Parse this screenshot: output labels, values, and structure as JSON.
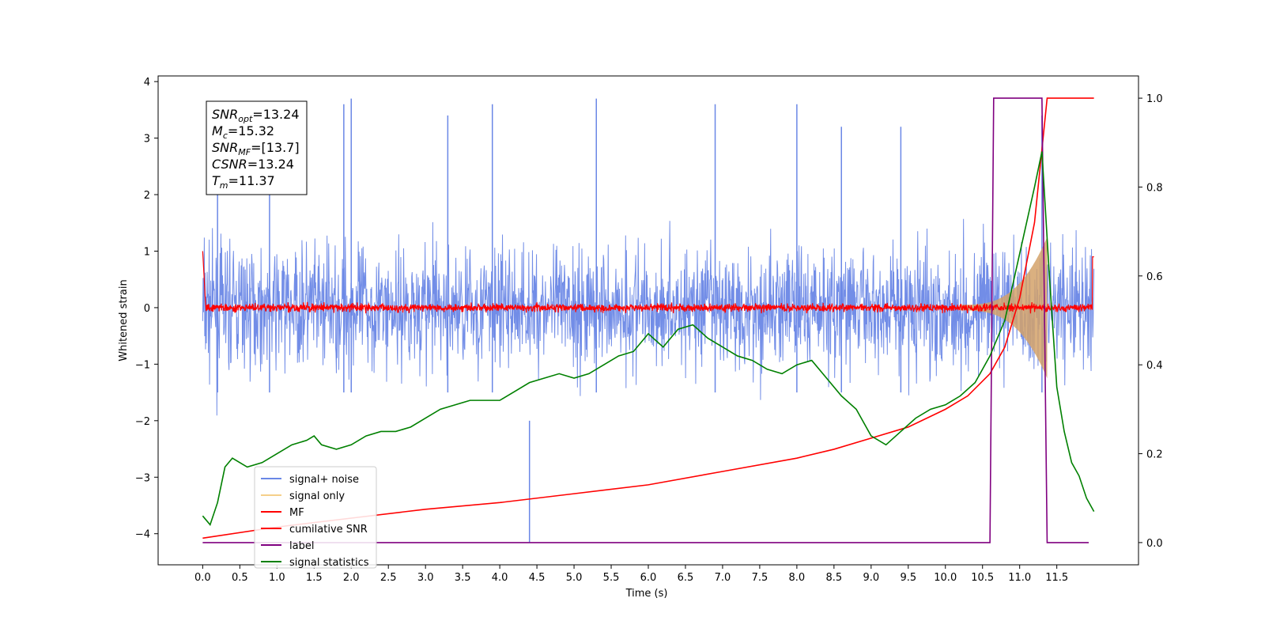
{
  "chart_data": {
    "type": "line",
    "title": "",
    "xlabel": "Time (s)",
    "ylabel": "Whitened strain",
    "y2label": "",
    "xlim": [
      -0.6,
      12.6
    ],
    "ylim": [
      -4.55,
      4.1
    ],
    "y2lim": [
      -0.05,
      1.05
    ],
    "xticks": [
      0.0,
      0.5,
      1.0,
      1.5,
      2.0,
      2.5,
      3.0,
      3.5,
      4.0,
      4.5,
      5.0,
      5.5,
      6.0,
      6.5,
      7.0,
      7.5,
      8.0,
      8.5,
      9.0,
      9.5,
      10.0,
      10.5,
      11.0,
      11.5
    ],
    "xtick_labels": [
      "0.0",
      "0.5",
      "1.0",
      "1.5",
      "2.0",
      "2.5",
      "3.0",
      "3.5",
      "4.0",
      "4.5",
      "5.0",
      "5.5",
      "6.0",
      "6.5",
      "7.0",
      "7.5",
      "8.0",
      "8.5",
      "9.0",
      "9.5",
      "10.0",
      "10.5",
      "11.0",
      "11.5"
    ],
    "yticks": [
      -4,
      -3,
      -2,
      -1,
      0,
      1,
      2,
      3,
      4
    ],
    "ytick_labels": [
      "−4",
      "−3",
      "−2",
      "−1",
      "0",
      "1",
      "2",
      "3",
      "4"
    ],
    "y2ticks": [
      0.0,
      0.2,
      0.4,
      0.6,
      0.8,
      1.0
    ],
    "y2tick_labels": [
      "0.0",
      "0.2",
      "0.4",
      "0.6",
      "0.8",
      "1.0"
    ],
    "grid": false,
    "legend_position": "lower-left",
    "annotation": {
      "lines": [
        {
          "base": "SNR",
          "sub": "opt",
          "value": "=13.24"
        },
        {
          "base": "M",
          "sub": "c",
          "value": "=15.32"
        },
        {
          "base": "SNR",
          "sub": "MF",
          "value": "=[13.7]"
        },
        {
          "base": "CSNR",
          "sub": "",
          "value": "=13.24"
        },
        {
          "base": "T",
          "sub": "m",
          "value": "=11.37"
        }
      ]
    },
    "legend": [
      {
        "name": "signal+ noise",
        "color": "#6a87e6"
      },
      {
        "name": "signal only",
        "color": "#f5d08a"
      },
      {
        "name": "MF",
        "color": "#ff0000"
      },
      {
        "name": "cumilative SNR",
        "color": "#ff0000"
      },
      {
        "name": "label",
        "color": "#800080"
      },
      {
        "name": "signal statistics",
        "color": "#008000"
      }
    ],
    "series": [
      {
        "name": "cumilative SNR",
        "axis": "right",
        "color": "#ff0000",
        "x": [
          0.0,
          1.0,
          2.0,
          3.0,
          4.0,
          5.0,
          6.0,
          7.0,
          8.0,
          8.5,
          9.0,
          9.5,
          10.0,
          10.3,
          10.6,
          10.8,
          11.0,
          11.2,
          11.37,
          11.4,
          12.0
        ],
        "y": [
          0.01,
          0.035,
          0.055,
          0.075,
          0.09,
          0.11,
          0.13,
          0.16,
          0.19,
          0.21,
          0.235,
          0.26,
          0.3,
          0.33,
          0.38,
          0.44,
          0.55,
          0.72,
          1.0,
          1.0,
          1.0
        ]
      },
      {
        "name": "label",
        "axis": "right",
        "color": "#800080",
        "x": [
          0.0,
          10.6,
          10.65,
          11.3,
          11.37,
          11.93
        ],
        "y": [
          0.0,
          0.0,
          1.0,
          1.0,
          0.0,
          0.0
        ]
      },
      {
        "name": "signal statistics",
        "axis": "right",
        "color": "#008000",
        "x": [
          0.0,
          0.1,
          0.2,
          0.3,
          0.4,
          0.5,
          0.6,
          0.8,
          1.0,
          1.2,
          1.4,
          1.5,
          1.6,
          1.8,
          2.0,
          2.2,
          2.4,
          2.6,
          2.8,
          3.0,
          3.2,
          3.4,
          3.6,
          3.8,
          4.0,
          4.2,
          4.4,
          4.6,
          4.8,
          5.0,
          5.2,
          5.4,
          5.6,
          5.8,
          6.0,
          6.2,
          6.4,
          6.6,
          6.8,
          7.0,
          7.2,
          7.4,
          7.6,
          7.8,
          8.0,
          8.2,
          8.4,
          8.6,
          8.8,
          9.0,
          9.2,
          9.4,
          9.6,
          9.8,
          10.0,
          10.2,
          10.4,
          10.6,
          10.8,
          11.0,
          11.2,
          11.3,
          11.4,
          11.5,
          11.6,
          11.7,
          11.8,
          11.9,
          12.0
        ],
        "y": [
          0.06,
          0.04,
          0.09,
          0.17,
          0.19,
          0.18,
          0.17,
          0.18,
          0.2,
          0.22,
          0.23,
          0.24,
          0.22,
          0.21,
          0.22,
          0.24,
          0.25,
          0.25,
          0.26,
          0.28,
          0.3,
          0.31,
          0.32,
          0.32,
          0.32,
          0.34,
          0.36,
          0.37,
          0.38,
          0.37,
          0.38,
          0.4,
          0.42,
          0.43,
          0.47,
          0.44,
          0.48,
          0.49,
          0.46,
          0.44,
          0.42,
          0.41,
          0.39,
          0.38,
          0.4,
          0.41,
          0.37,
          0.33,
          0.3,
          0.24,
          0.22,
          0.25,
          0.28,
          0.3,
          0.31,
          0.33,
          0.36,
          0.42,
          0.5,
          0.65,
          0.8,
          0.88,
          0.6,
          0.35,
          0.25,
          0.18,
          0.15,
          0.1,
          0.07
        ]
      },
      {
        "name": "signal+ noise",
        "axis": "left",
        "color": "#6a87e6",
        "description_envelope": [
          2.2,
          -2.3
        ],
        "spike_times": [
          0.2,
          0.9,
          1.9,
          2.0,
          3.3,
          3.9,
          5.3,
          6.9,
          8.0,
          8.6,
          9.4,
          11.3
        ]
      }
    ]
  }
}
